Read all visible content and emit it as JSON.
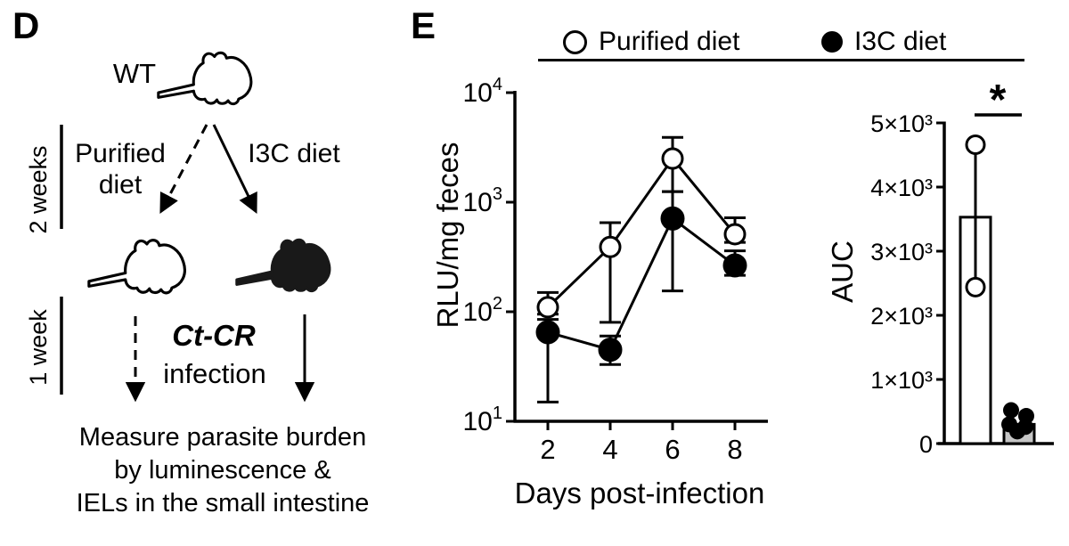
{
  "panel_d": {
    "label": "D",
    "wt_label": "WT",
    "duration_top": "2 weeks",
    "duration_bottom": "1 week",
    "left_arm_line1": "Purified",
    "left_arm_line2": "diet",
    "right_arm": "I3C diet",
    "infection_line1": "Ct-CR",
    "infection_line2": "infection",
    "outcome_lines": [
      "Measure parasite burden",
      "by luminescence &",
      "IELs in the small intestine"
    ]
  },
  "panel_e": {
    "label": "E",
    "legend": [
      {
        "label": "Purified diet",
        "marker": "open-circle"
      },
      {
        "label": "I3C diet",
        "marker": "filled-circle"
      }
    ]
  },
  "chart_data": [
    {
      "type": "line",
      "title": "",
      "xlabel": "Days post-infection",
      "ylabel": "RLU/mg feces",
      "x": [
        2,
        4,
        6,
        8
      ],
      "xlim": [
        1,
        9
      ],
      "y_scale": "log10",
      "ylim": [
        10,
        10000
      ],
      "y_tick_exponents": [
        1,
        2,
        3,
        4
      ],
      "grid": false,
      "legend_position": "top",
      "series": [
        {
          "name": "Purified diet",
          "marker": "open-circle",
          "values": [
            110,
            390,
            2500,
            510
          ],
          "error_lo": [
            95,
            80,
            1250,
            430
          ],
          "error_hi": [
            150,
            650,
            3900,
            720
          ]
        },
        {
          "name": "I3C diet",
          "marker": "filled-circle",
          "values": [
            65,
            45,
            710,
            265
          ],
          "error_lo": [
            15,
            33,
            155,
            215
          ],
          "error_hi": [
            85,
            60,
            1250,
            360
          ]
        }
      ]
    },
    {
      "type": "bar",
      "title": "",
      "xlabel": "",
      "ylabel": "AUC",
      "ylim": [
        0,
        5000
      ],
      "y_ticks": [
        0,
        1000,
        2000,
        3000,
        4000,
        5000
      ],
      "y_tick_labels": [
        "0",
        "1×10³",
        "2×10³",
        "3×10³",
        "4×10³",
        "5×10³"
      ],
      "categories": [
        "Purified diet",
        "I3C diet"
      ],
      "bars": [
        {
          "name": "Purified diet",
          "value": 3530,
          "fill": "#ffffff",
          "points": [
            4660,
            2440
          ],
          "point_style": "open-circle",
          "range_line": true
        },
        {
          "name": "I3C diet",
          "value": 300,
          "fill": "#c6c6c6",
          "points": [
            520,
            430,
            300,
            260,
            190
          ],
          "point_style": "filled-circle"
        }
      ],
      "significance": "*"
    }
  ],
  "colors": {
    "ink": "#000000",
    "i3c_bar_gray": "#c6c6c6"
  }
}
